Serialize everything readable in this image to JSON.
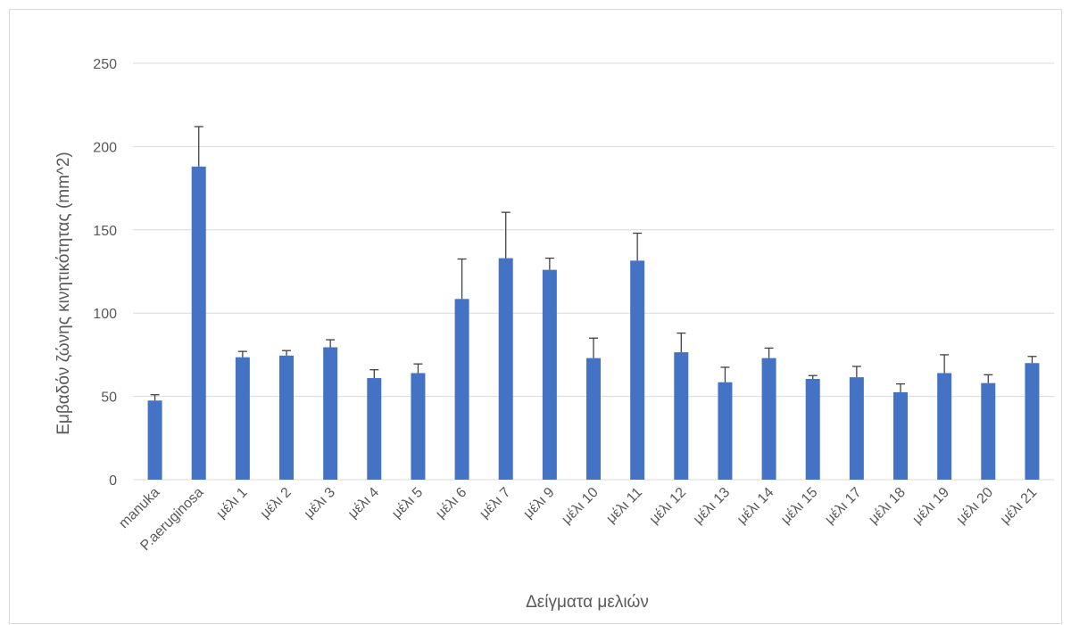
{
  "chart_data": {
    "type": "bar",
    "title": "",
    "xlabel": "Δείγματα μελιών",
    "ylabel": "Εμβαδόν ζώνης κινητικότητας (mm^2)",
    "ylim": [
      0,
      250
    ],
    "yticks": [
      0,
      50,
      100,
      150,
      200,
      250
    ],
    "grid": true,
    "categories": [
      "manuka",
      "P.aeruginosa",
      "μέλι 1",
      "μέλι 2",
      "μέλι 3",
      "μέλι 4",
      "μέλι 5",
      "μέλι 6",
      "μέλι 7",
      "μέλι 9",
      "μέλι 10",
      "μέλι 11",
      "μέλι 12",
      "μέλι 13",
      "μέλι 14",
      "μέλι 15",
      "μέλι 17",
      "μέλι 18",
      "μέλι 19",
      "μέλι 20",
      "μέλι 21"
    ],
    "values": [
      47.5,
      188,
      73.5,
      74.5,
      79.5,
      61,
      64,
      108.5,
      133,
      126,
      73,
      131.5,
      76.5,
      58.5,
      73,
      60.5,
      61.5,
      52.5,
      64,
      58,
      70
    ],
    "errors": [
      3.5,
      24,
      3.5,
      3,
      4.5,
      5,
      5.5,
      24,
      27.5,
      7,
      12,
      16.5,
      11.5,
      9,
      6,
      2,
      6.5,
      5,
      11,
      5,
      4
    ],
    "bar_color": "#4472C4",
    "error_color": "#404040"
  }
}
